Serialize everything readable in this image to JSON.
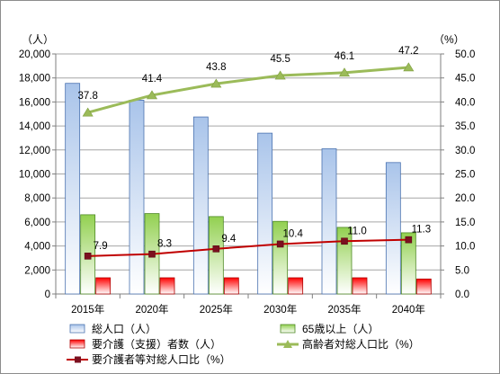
{
  "chart_data": {
    "type": "bar",
    "categories": [
      "2015年",
      "2020年",
      "2025年",
      "2030年",
      "2035年",
      "2040年"
    ],
    "y_left": {
      "label": "（人）",
      "range": [
        0,
        20000
      ],
      "step": 2000,
      "ticks": [
        "0",
        "2,000",
        "4,000",
        "6,000",
        "8,000",
        "10,000",
        "12,000",
        "14,000",
        "16,000",
        "18,000",
        "20,000"
      ]
    },
    "y_right": {
      "label": "（%）",
      "range": [
        0,
        50
      ],
      "step": 5,
      "ticks": [
        "0.0",
        "5.0",
        "10.0",
        "15.0",
        "20.0",
        "25.0",
        "30.0",
        "35.0",
        "40.0",
        "45.0",
        "50.0"
      ]
    },
    "grid": true,
    "legend_position": "bottom",
    "series": [
      {
        "name": "総人口（人）",
        "kind": "bar",
        "axis": "left",
        "values": [
          17550,
          16150,
          14750,
          13400,
          12100,
          10950
        ],
        "color_top": "#a9c4ea",
        "color_bottom": "#ffffff",
        "edge": "#4a72b0"
      },
      {
        "name": "65歳以上（人）",
        "kind": "bar",
        "axis": "left",
        "values": [
          6600,
          6700,
          6450,
          6050,
          5550,
          5100
        ],
        "color_top": "#92d050",
        "color_bottom": "#ffffff",
        "edge": "#4e8a24"
      },
      {
        "name": "要介護（支援）者数（人）",
        "kind": "bar",
        "axis": "left",
        "values": [
          1350,
          1350,
          1350,
          1350,
          1350,
          1250
        ],
        "color_top": "#ff0000",
        "color_bottom": "#ffffff",
        "edge": "#b00000"
      },
      {
        "name": "高齢者対総人口比（%）",
        "kind": "line",
        "axis": "right",
        "values": [
          37.8,
          41.4,
          43.8,
          45.5,
          46.1,
          47.2
        ],
        "labels": [
          "37.8",
          "41.4",
          "43.8",
          "45.5",
          "46.1",
          "47.2"
        ],
        "color": "#9bbb59",
        "marker": "triangle"
      },
      {
        "name": "要介護者等対総人口比（%）",
        "kind": "line",
        "axis": "right",
        "values": [
          7.9,
          8.3,
          9.4,
          10.4,
          11.0,
          11.3
        ],
        "labels": [
          "7.9",
          "8.3",
          "9.4",
          "10.4",
          "11.0",
          "11.3"
        ],
        "color": "#c00000",
        "marker_color": "#7b1020",
        "marker": "square"
      }
    ]
  }
}
